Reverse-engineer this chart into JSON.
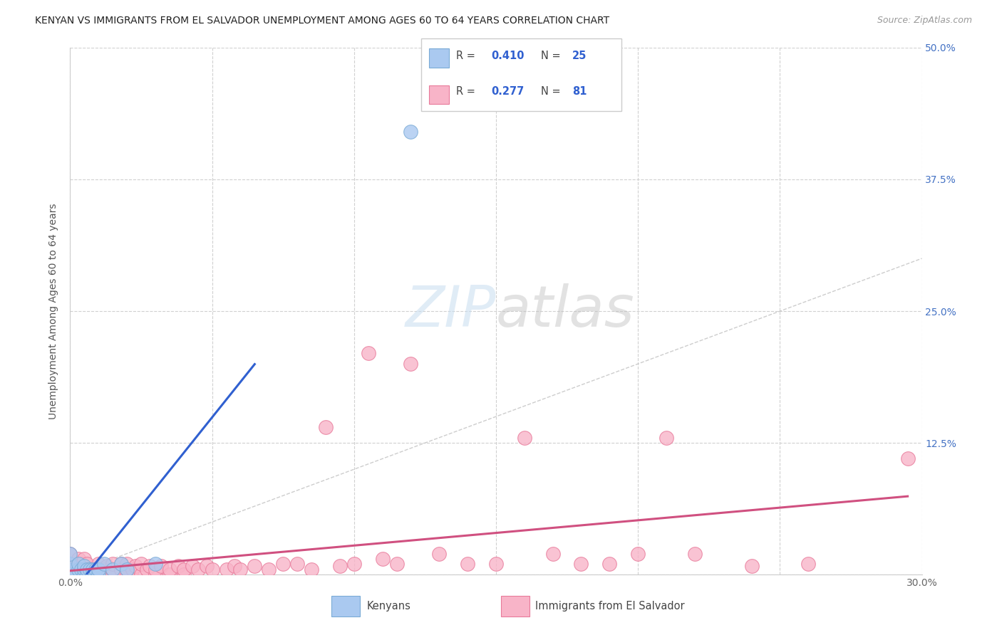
{
  "title": "KENYAN VS IMMIGRANTS FROM EL SALVADOR UNEMPLOYMENT AMONG AGES 60 TO 64 YEARS CORRELATION CHART",
  "source": "Source: ZipAtlas.com",
  "ylabel": "Unemployment Among Ages 60 to 64 years",
  "xlim": [
    0.0,
    0.3
  ],
  "ylim": [
    0.0,
    0.5
  ],
  "legend_r_kenyan": "0.410",
  "legend_n_kenyan": "25",
  "legend_r_salvador": "0.277",
  "legend_n_salvador": "81",
  "kenyan_color": "#aac9f0",
  "kenyan_edge_color": "#7aabd6",
  "salvador_color": "#f8b4c8",
  "salvador_edge_color": "#e87a9a",
  "trend_kenyan_color": "#3060d0",
  "trend_salvador_color": "#d05080",
  "diagonal_color": "#c8c8c8",
  "background_color": "#ffffff",
  "watermark_color": "#d8e8f8",
  "kenyan_x": [
    0.0,
    0.0,
    0.0,
    0.0,
    0.002,
    0.003,
    0.003,
    0.004,
    0.005,
    0.005,
    0.005,
    0.006,
    0.006,
    0.007,
    0.008,
    0.008,
    0.009,
    0.01,
    0.01,
    0.012,
    0.015,
    0.018,
    0.02,
    0.03,
    0.12
  ],
  "kenyan_y": [
    0.0,
    0.005,
    0.01,
    0.02,
    0.0,
    0.005,
    0.01,
    0.005,
    0.0,
    0.005,
    0.008,
    0.0,
    0.005,
    0.005,
    0.0,
    0.005,
    0.005,
    0.0,
    0.005,
    0.01,
    0.005,
    0.01,
    0.005,
    0.01,
    0.42
  ],
  "salvador_x": [
    0.0,
    0.0,
    0.0,
    0.002,
    0.002,
    0.003,
    0.003,
    0.004,
    0.004,
    0.005,
    0.005,
    0.005,
    0.006,
    0.006,
    0.006,
    0.007,
    0.007,
    0.008,
    0.008,
    0.009,
    0.009,
    0.01,
    0.01,
    0.01,
    0.012,
    0.012,
    0.013,
    0.015,
    0.015,
    0.015,
    0.018,
    0.018,
    0.02,
    0.02,
    0.02,
    0.022,
    0.023,
    0.025,
    0.025,
    0.027,
    0.028,
    0.03,
    0.03,
    0.032,
    0.035,
    0.035,
    0.038,
    0.04,
    0.04,
    0.043,
    0.045,
    0.048,
    0.05,
    0.055,
    0.058,
    0.06,
    0.065,
    0.07,
    0.075,
    0.08,
    0.085,
    0.09,
    0.095,
    0.1,
    0.105,
    0.11,
    0.115,
    0.12,
    0.13,
    0.14,
    0.15,
    0.16,
    0.17,
    0.18,
    0.19,
    0.2,
    0.21,
    0.22,
    0.24,
    0.26,
    0.295
  ],
  "salvador_y": [
    0.0,
    0.005,
    0.02,
    0.0,
    0.01,
    0.005,
    0.015,
    0.0,
    0.01,
    0.0,
    0.005,
    0.015,
    0.0,
    0.005,
    0.01,
    0.0,
    0.005,
    0.0,
    0.005,
    0.0,
    0.005,
    0.0,
    0.005,
    0.01,
    0.0,
    0.005,
    0.008,
    0.0,
    0.005,
    0.01,
    0.005,
    0.01,
    0.0,
    0.005,
    0.01,
    0.005,
    0.008,
    0.0,
    0.01,
    0.005,
    0.008,
    0.0,
    0.005,
    0.008,
    0.0,
    0.005,
    0.008,
    0.0,
    0.005,
    0.008,
    0.005,
    0.008,
    0.005,
    0.005,
    0.008,
    0.005,
    0.008,
    0.005,
    0.01,
    0.01,
    0.005,
    0.14,
    0.008,
    0.01,
    0.21,
    0.015,
    0.01,
    0.2,
    0.02,
    0.01,
    0.01,
    0.13,
    0.02,
    0.01,
    0.01,
    0.02,
    0.13,
    0.02,
    0.008,
    0.01,
    0.11
  ]
}
